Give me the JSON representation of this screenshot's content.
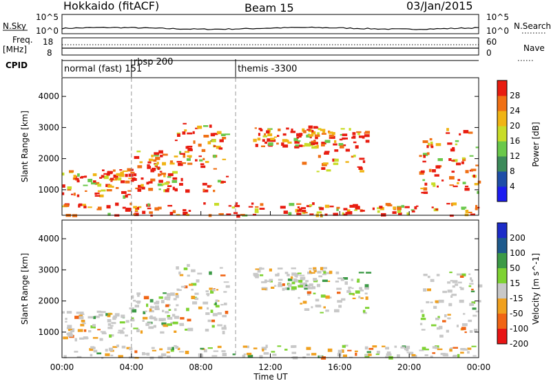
{
  "header": {
    "title": "Hokkaido (fitACF)",
    "beam": "Beam 15",
    "date": "03/Jan/2015"
  },
  "top_panels": {
    "nsky_label": "N.Sky",
    "nsky_ticks": [
      "10^5",
      "10^0"
    ],
    "nsearch_label": "N.Search",
    "freq_label_1": "Freq.",
    "freq_label_2": "[MHz]",
    "freq_ticks": [
      "18",
      "8"
    ],
    "nave_ticks": [
      "60",
      "0"
    ],
    "nave_label": "Nave",
    "cpid_label": "CPID"
  },
  "cpid_segments": [
    {
      "start_hour": 0.0,
      "label": "normal (fast) 151"
    },
    {
      "start_hour": 4.0,
      "label": "rbsp 200"
    },
    {
      "start_hour": 10.0,
      "label": "themis -3300"
    }
  ],
  "chart_data": [
    {
      "type": "heatmap",
      "title": "Power",
      "ylabel": "Slant Range [km]",
      "colorbar_label": "Power [dB]",
      "colorbar_ticks": [
        "4",
        "8",
        "12",
        "16",
        "20",
        "24",
        "28"
      ],
      "colorbar_colors": [
        "#1c1cf0",
        "#1e4ea8",
        "#3c8a5a",
        "#6ac84a",
        "#c8dc28",
        "#f0b414",
        "#f07014",
        "#e81c10"
      ],
      "ylim": [
        180,
        4600
      ],
      "y_ticks": [
        "1000",
        "2000",
        "3000",
        "4000"
      ],
      "echo_bands": [
        {
          "t0": 0.0,
          "t1": 3.8,
          "r_low": 800,
          "r_high": 1700
        },
        {
          "t0": 3.8,
          "t1": 6.5,
          "r_low": 1000,
          "r_high": 2300
        },
        {
          "t0": 6.5,
          "t1": 9.5,
          "r_low": 1000,
          "r_high": 3200
        },
        {
          "t0": 11.0,
          "t1": 15.0,
          "r_low": 2400,
          "r_high": 3100
        },
        {
          "t0": 13.5,
          "t1": 17.5,
          "r_low": 1600,
          "r_high": 3000
        },
        {
          "t0": 20.5,
          "t1": 24.0,
          "r_low": 900,
          "r_high": 3000
        },
        {
          "t0": 0.0,
          "t1": 24.0,
          "r_low": 200,
          "r_high": 600
        }
      ]
    },
    {
      "type": "heatmap",
      "title": "Velocity",
      "ylabel": "Slant Range [km]",
      "colorbar_label": "Velocity [m s^-1]",
      "colorbar_ticks": [
        "200",
        "100",
        "50",
        "15",
        "-15",
        "-50",
        "-100",
        "-200"
      ],
      "colorbar_colors": [
        "#1c2cc8",
        "#1e5a8c",
        "#3c9a46",
        "#7ed232",
        "#c8c8c8",
        "#f0a01e",
        "#f06414",
        "#e81414"
      ],
      "ylim": [
        180,
        4600
      ],
      "y_ticks": [
        "1000",
        "2000",
        "3000",
        "4000"
      ],
      "x_ticks": [
        "00:00",
        "04:00",
        "08:00",
        "12:00",
        "16:00",
        "20:00",
        "00:00"
      ],
      "xlabel": "Time UT",
      "xlim_hours": [
        0,
        24
      ]
    }
  ]
}
